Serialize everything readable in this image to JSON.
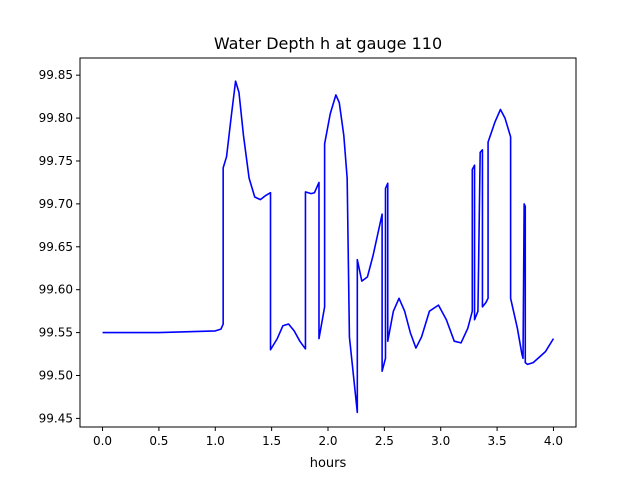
{
  "figure": {
    "title": "Water Depth h at gauge 110"
  },
  "chart_data": {
    "type": "line",
    "title": "Water Depth h at gauge 110",
    "xlabel": "hours",
    "ylabel": "",
    "xlim": [
      -0.2,
      4.2
    ],
    "ylim": [
      99.44,
      99.87
    ],
    "xticks": [
      0.0,
      0.5,
      1.0,
      1.5,
      2.0,
      2.5,
      3.0,
      3.5,
      4.0
    ],
    "xtick_labels": [
      "0.0",
      "0.5",
      "1.0",
      "1.5",
      "2.0",
      "2.5",
      "3.0",
      "3.5",
      "4.0"
    ],
    "yticks": [
      99.45,
      99.5,
      99.55,
      99.6,
      99.65,
      99.7,
      99.75,
      99.8,
      99.85
    ],
    "ytick_labels": [
      "99.45",
      "99.50",
      "99.55",
      "99.60",
      "99.65",
      "99.70",
      "99.75",
      "99.80",
      "99.85"
    ],
    "grid": false,
    "legend": "none",
    "series": [
      {
        "color": "#0000ff",
        "x": [
          0.0,
          0.5,
          1.0,
          1.05,
          1.07,
          1.07,
          1.1,
          1.14,
          1.18,
          1.21,
          1.25,
          1.3,
          1.35,
          1.4,
          1.45,
          1.49,
          1.49,
          1.55,
          1.6,
          1.65,
          1.7,
          1.75,
          1.8,
          1.8,
          1.85,
          1.88,
          1.92,
          1.92,
          1.97,
          1.97,
          2.02,
          2.07,
          2.1,
          2.14,
          2.17,
          2.19,
          2.26,
          2.26,
          2.3,
          2.35,
          2.4,
          2.45,
          2.48,
          2.48,
          2.51,
          2.51,
          2.53,
          2.53,
          2.58,
          2.63,
          2.68,
          2.73,
          2.78,
          2.83,
          2.9,
          2.98,
          3.05,
          3.12,
          3.18,
          3.24,
          3.28,
          3.28,
          3.3,
          3.3,
          3.33,
          3.35,
          3.37,
          3.37,
          3.4,
          3.42,
          3.42,
          3.48,
          3.53,
          3.57,
          3.62,
          3.62,
          3.68,
          3.72,
          3.73,
          3.74,
          3.75,
          3.75,
          3.77,
          3.82,
          3.88,
          3.93,
          4.0
        ],
        "y": [
          99.55,
          99.55,
          99.552,
          99.554,
          99.56,
          99.742,
          99.755,
          99.8,
          99.843,
          99.83,
          99.78,
          99.73,
          99.708,
          99.705,
          99.71,
          99.713,
          99.53,
          99.543,
          99.558,
          99.56,
          99.552,
          99.54,
          99.531,
          99.714,
          99.712,
          99.713,
          99.725,
          99.543,
          99.58,
          99.77,
          99.805,
          99.827,
          99.818,
          99.78,
          99.73,
          99.545,
          99.457,
          99.635,
          99.61,
          99.615,
          99.64,
          99.67,
          99.688,
          99.505,
          99.52,
          99.718,
          99.724,
          99.54,
          99.575,
          99.59,
          99.575,
          99.55,
          99.532,
          99.545,
          99.575,
          99.582,
          99.565,
          99.54,
          99.538,
          99.555,
          99.575,
          99.74,
          99.745,
          99.565,
          99.575,
          99.76,
          99.763,
          99.58,
          99.585,
          99.59,
          99.772,
          99.795,
          99.81,
          99.8,
          99.778,
          99.59,
          99.555,
          99.525,
          99.52,
          99.7,
          99.697,
          99.515,
          99.513,
          99.515,
          99.522,
          99.528,
          99.543
        ]
      }
    ]
  }
}
